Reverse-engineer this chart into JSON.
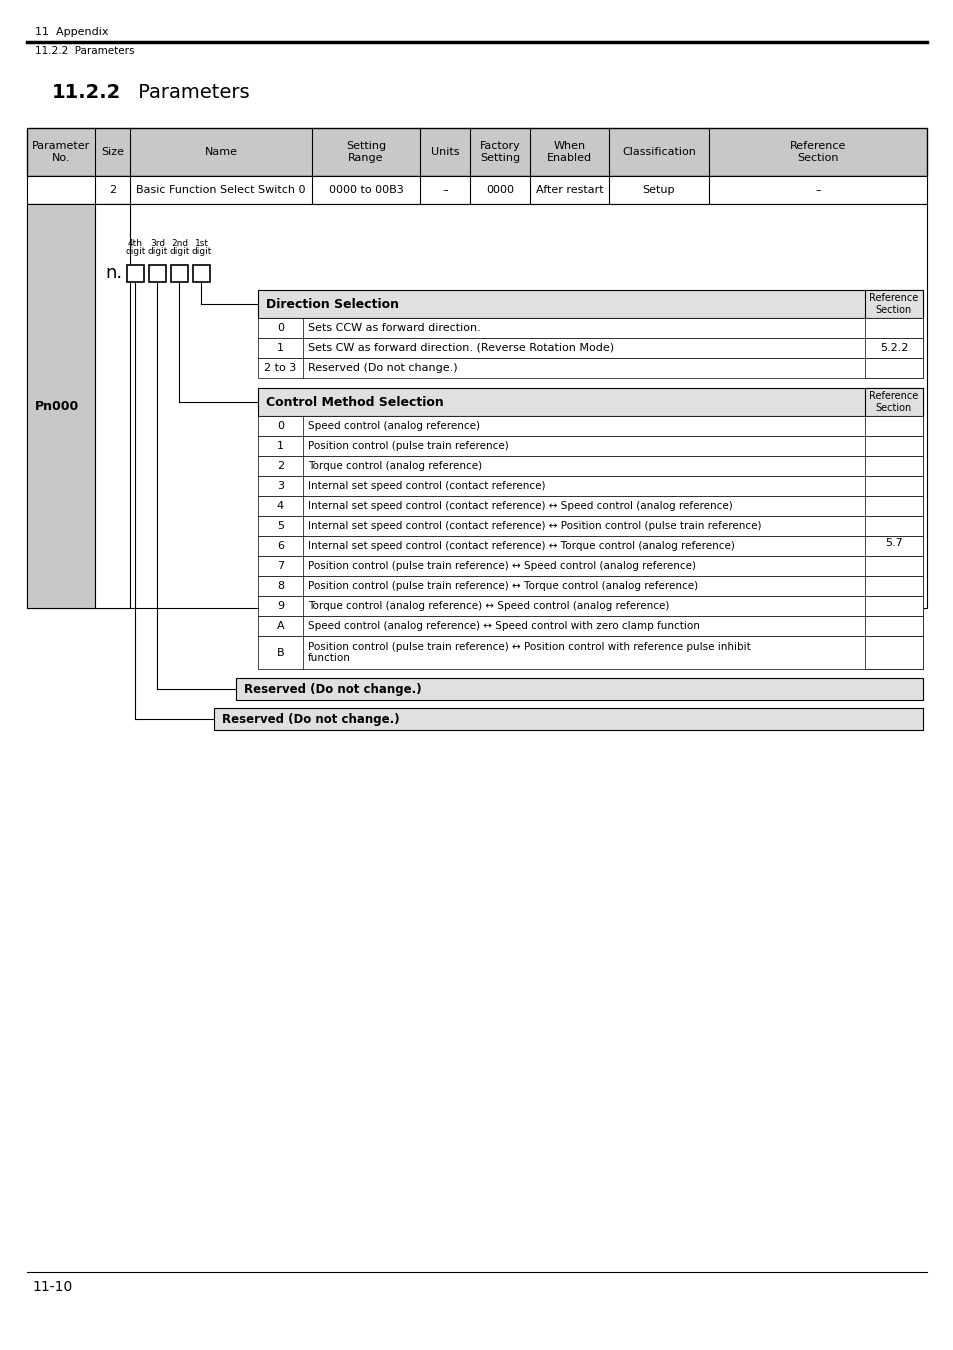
{
  "page_header_left": "11  Appendix",
  "page_subheader": "11.2.2  Parameters",
  "section_title_bold": "11.2.2",
  "section_title_normal": " Parameters",
  "param_no": "Pn000",
  "header_cols": [
    "Parameter\nNo.",
    "Size",
    "Name",
    "Setting\nRange",
    "Units",
    "Factory\nSetting",
    "When\nEnabled",
    "Classification",
    "Reference\nSection"
  ],
  "row1": [
    "",
    "2",
    "Basic Function Select Switch 0",
    "0000 to 00B3",
    "–",
    "0000",
    "After restart",
    "Setup",
    "–"
  ],
  "digit_labels_top": [
    "4th",
    "3rd",
    "2nd",
    "1st"
  ],
  "digit_labels_bottom": [
    "digit",
    "digit",
    "digit",
    "digit"
  ],
  "n_label": "n.",
  "dir_sel_label": "Direction Selection",
  "dir_sel_ref": "Reference\nSection",
  "dir_rows": [
    [
      "0",
      "Sets CCW as forward direction."
    ],
    [
      "1",
      "Sets CW as forward direction. (Reverse Rotation Mode)"
    ],
    [
      "2 to 3",
      "Reserved (Do not change.)"
    ]
  ],
  "dir_ref_val": "5.2.2",
  "ctrl_sel_label": "Control Method Selection",
  "ctrl_sel_ref": "Reference\nSection",
  "ctrl_rows": [
    [
      "0",
      "Speed control (analog reference)"
    ],
    [
      "1",
      "Position control (pulse train reference)"
    ],
    [
      "2",
      "Torque control (analog reference)"
    ],
    [
      "3",
      "Internal set speed control (contact reference)"
    ],
    [
      "4",
      "Internal set speed control (contact reference) ↔ Speed control (analog reference)"
    ],
    [
      "5",
      "Internal set speed control (contact reference) ↔ Position control (pulse train reference)"
    ],
    [
      "6",
      "Internal set speed control (contact reference) ↔ Torque control (analog reference)"
    ],
    [
      "7",
      "Position control (pulse train reference) ↔ Speed control (analog reference)"
    ],
    [
      "8",
      "Position control (pulse train reference) ↔ Torque control (analog reference)"
    ],
    [
      "9",
      "Torque control (analog reference) ↔ Speed control (analog reference)"
    ],
    [
      "A",
      "Speed control (analog reference) ↔ Speed control with zero clamp function"
    ],
    [
      "B",
      "Position control (pulse train reference) ↔ Position control with reference pulse inhibit\nfunction"
    ]
  ],
  "ctrl_ref_val": "5.7",
  "reserved1": "Reserved (Do not change.)",
  "reserved2": "Reserved (Do not change.)",
  "footer": "11-10",
  "bg_gray": "#c8c8c8",
  "bg_light_gray": "#e0e0e0",
  "bg_white": "#ffffff",
  "text_black": "#000000",
  "border_color": "#000000"
}
